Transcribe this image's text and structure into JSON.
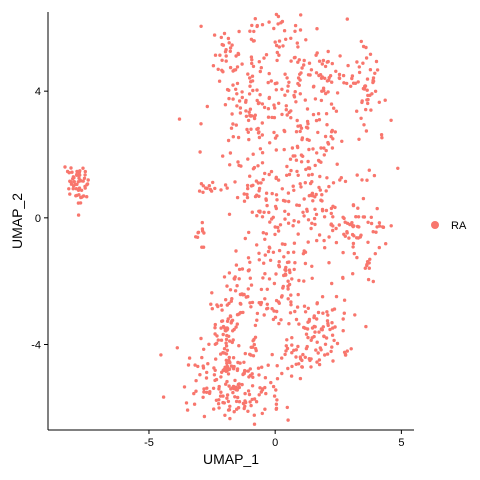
{
  "chart_data": {
    "type": "scatter",
    "title": "",
    "xlabel": "UMAP_1",
    "ylabel": "UMAP_2",
    "xlim": [
      -9.0,
      5.5
    ],
    "ylim": [
      -6.7,
      6.5
    ],
    "x_ticks": [
      -5,
      0,
      5
    ],
    "x_tick_labels": [
      "-5",
      "0",
      "5"
    ],
    "y_ticks": [
      -4,
      0,
      4
    ],
    "y_tick_labels": [
      "-4",
      "0",
      "4"
    ],
    "grid": false,
    "legend": {
      "position": "right",
      "entries": [
        {
          "label": "RA",
          "color": "#F8766D"
        }
      ]
    },
    "series": [
      {
        "name": "RA",
        "color": "#F8766D",
        "clusters": [
          {
            "cx": -7.9,
            "cy": 1.05,
            "sx": 0.22,
            "sy": 0.33,
            "n": 55
          },
          {
            "cx": -2.6,
            "cy": 0.95,
            "sx": 0.28,
            "sy": 0.15,
            "n": 12
          },
          {
            "cx": -3.0,
            "cy": -0.6,
            "sx": 0.12,
            "sy": 0.25,
            "n": 10
          },
          {
            "cx": -1.9,
            "cy": 5.2,
            "sx": 0.25,
            "sy": 0.4,
            "n": 25
          },
          {
            "cx": 0.0,
            "cy": 5.6,
            "sx": 1.1,
            "sy": 0.5,
            "n": 60
          },
          {
            "cx": 0.6,
            "cy": 4.1,
            "sx": 1.5,
            "sy": 0.7,
            "n": 90
          },
          {
            "cx": 2.2,
            "cy": 4.5,
            "sx": 0.4,
            "sy": 0.35,
            "n": 25
          },
          {
            "cx": 3.5,
            "cy": 4.2,
            "sx": 0.3,
            "sy": 0.5,
            "n": 45
          },
          {
            "cx": -1.1,
            "cy": 3.3,
            "sx": 0.5,
            "sy": 0.45,
            "n": 40
          },
          {
            "cx": 1.0,
            "cy": 2.0,
            "sx": 1.3,
            "sy": 0.8,
            "n": 110
          },
          {
            "cx": 1.7,
            "cy": 0.2,
            "sx": 1.2,
            "sy": 0.8,
            "n": 100
          },
          {
            "cx": -0.6,
            "cy": 0.6,
            "sx": 0.9,
            "sy": 0.7,
            "n": 50
          },
          {
            "cx": 3.3,
            "cy": -0.5,
            "sx": 0.5,
            "sy": 0.6,
            "n": 35
          },
          {
            "cx": 4.2,
            "cy": -0.2,
            "sx": 0.35,
            "sy": 0.12,
            "n": 8
          },
          {
            "cx": 3.8,
            "cy": -1.5,
            "sx": 0.15,
            "sy": 0.25,
            "n": 8
          },
          {
            "cx": 0.4,
            "cy": -1.7,
            "sx": 0.9,
            "sy": 0.8,
            "n": 70
          },
          {
            "cx": 0.0,
            "cy": -2.6,
            "sx": 0.4,
            "sy": 0.5,
            "n": 25
          },
          {
            "cx": -1.4,
            "cy": -2.2,
            "sx": 0.4,
            "sy": 0.45,
            "n": 25
          },
          {
            "cx": -1.8,
            "cy": -3.2,
            "sx": 0.45,
            "sy": 0.5,
            "n": 45
          },
          {
            "cx": 1.8,
            "cy": -3.6,
            "sx": 0.6,
            "sy": 0.55,
            "n": 80
          },
          {
            "cx": 0.9,
            "cy": -4.5,
            "sx": 0.5,
            "sy": 0.3,
            "n": 25
          },
          {
            "cx": -2.1,
            "cy": -4.8,
            "sx": 0.7,
            "sy": 0.55,
            "n": 110
          },
          {
            "cx": -1.0,
            "cy": -5.3,
            "sx": 0.8,
            "sy": 0.45,
            "n": 70
          },
          {
            "cx": -1.6,
            "cy": -6.0,
            "sx": 0.4,
            "sy": 0.15,
            "n": 20
          }
        ]
      }
    ]
  }
}
